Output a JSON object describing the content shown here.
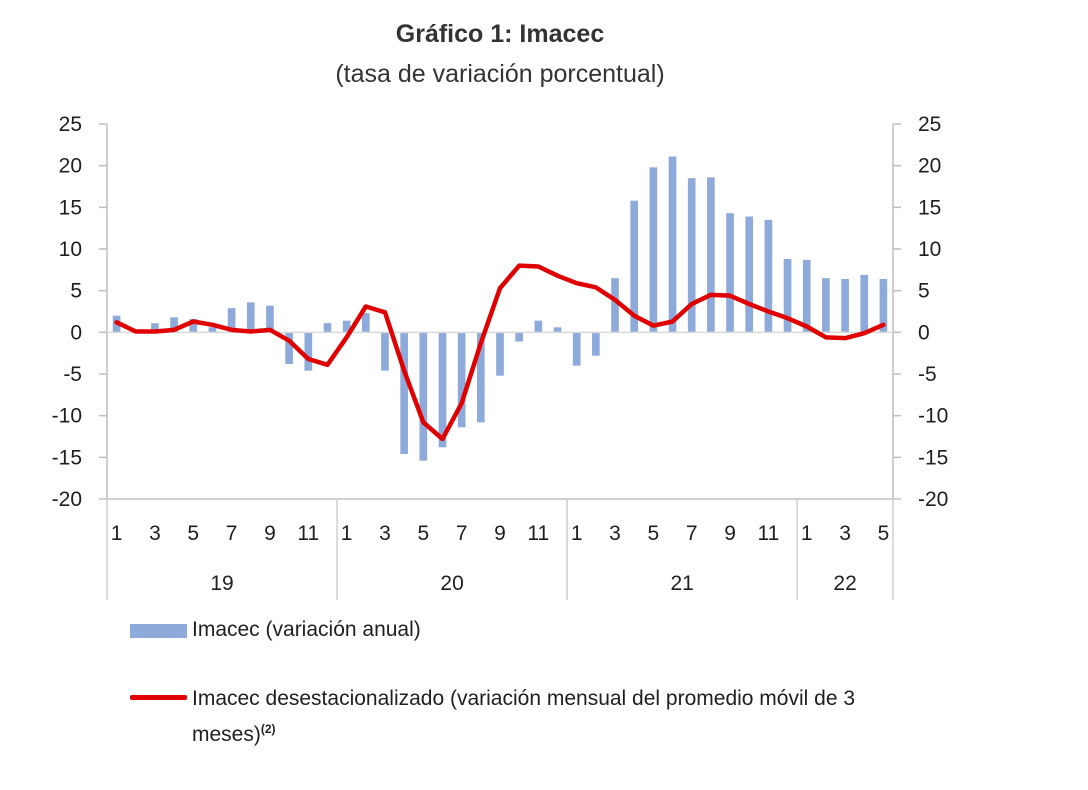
{
  "title": "Gráfico 1: Imacec",
  "subtitle": "(tasa de variación porcentual)",
  "chart_data": {
    "type": "bar",
    "secondary_type": "line",
    "ylim": [
      -20,
      25
    ],
    "yticks": [
      25,
      20,
      15,
      10,
      5,
      0,
      -5,
      -10,
      -15,
      -20
    ],
    "y_axis_right": true,
    "grid": false,
    "x_month_labels": [
      "1",
      "3",
      "5",
      "7",
      "9",
      "11",
      "1",
      "3",
      "5",
      "7",
      "9",
      "11",
      "1",
      "3",
      "5",
      "7",
      "9",
      "11",
      "1",
      "3",
      "5"
    ],
    "year_groups": [
      {
        "label": "19",
        "months": 12
      },
      {
        "label": "20",
        "months": 12
      },
      {
        "label": "21",
        "months": 12
      },
      {
        "label": "22",
        "months": 5
      }
    ],
    "series": [
      {
        "name": "Imacec (variación anual)",
        "kind": "bar",
        "color": "#8eaadb",
        "values": [
          2.0,
          0.1,
          1.1,
          1.8,
          1.6,
          0.6,
          2.9,
          3.6,
          3.2,
          -3.8,
          -4.6,
          1.1,
          1.4,
          2.3,
          -4.6,
          -14.6,
          -15.4,
          -13.8,
          -11.4,
          -10.8,
          -5.2,
          -1.1,
          1.4,
          0.6,
          -4.0,
          -2.8,
          6.5,
          15.8,
          19.8,
          21.1,
          18.5,
          18.6,
          14.3,
          13.9,
          13.5,
          8.8,
          8.7,
          6.5,
          6.4,
          6.9,
          6.4
        ]
      },
      {
        "name": "Imacec desestacionalizado (variación mensual del promedio móvil de 3 meses)",
        "kind": "line",
        "color": "#e00000",
        "values": [
          1.2,
          0.1,
          0.1,
          0.3,
          1.3,
          0.9,
          0.3,
          0.1,
          0.3,
          -1.0,
          -3.2,
          -3.9,
          -0.6,
          3.1,
          2.4,
          -4.6,
          -10.8,
          -12.8,
          -8.5,
          -1.3,
          5.3,
          8.0,
          7.9,
          6.8,
          5.9,
          5.4,
          3.9,
          2.0,
          0.8,
          1.3,
          3.4,
          4.5,
          4.4,
          3.4,
          2.5,
          1.7,
          0.7,
          -0.6,
          -0.7,
          -0.1,
          0.9
        ]
      }
    ]
  },
  "legend": {
    "bar_label": "Imacec (variación anual)",
    "line_label": "Imacec desestacionalizado (variación mensual del promedio móvil de 3",
    "line_label_cont": "meses)",
    "line_label_note": "(2)"
  }
}
